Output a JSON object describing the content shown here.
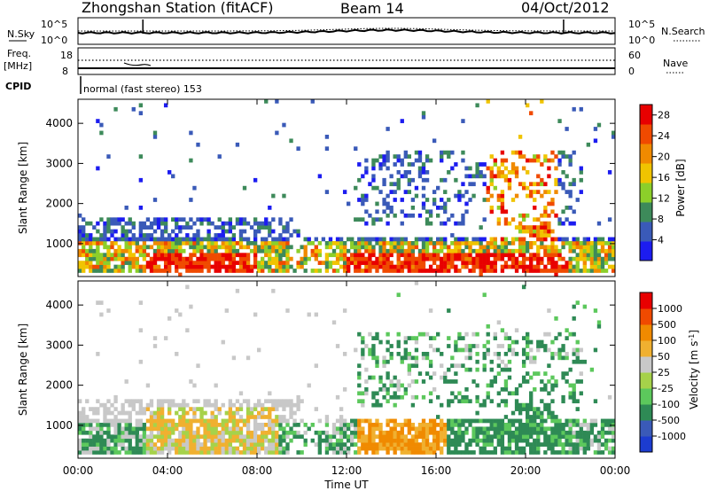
{
  "header": {
    "station": "Zhongshan Station (fitACF)",
    "beam": "Beam 14",
    "date": "04/Oct/2012"
  },
  "params": {
    "nsky_label": "N.Sky",
    "nsearch_label": "N.Search",
    "freq_label": "Freq.",
    "freq_unit": "[MHz]",
    "nave_label": "Nave",
    "cpid_label": "CPID",
    "cpid_text": "normal (fast stereo) 153",
    "noise_ticks_left": [
      "10^5",
      "10^0"
    ],
    "noise_ticks_right": [
      "10^5",
      "10^0"
    ],
    "freq_ticks": [
      "18",
      "8"
    ],
    "nave_ticks": [
      "60",
      "0"
    ]
  },
  "chart_data": [
    {
      "type": "heatmap",
      "title": "",
      "xlabel": "Time UT",
      "ylabel": "Slant Range [km]",
      "x_ticks": [
        "00:00",
        "04:00",
        "08:00",
        "12:00",
        "16:00",
        "20:00",
        "00:00"
      ],
      "xlim_hours": [
        0,
        24
      ],
      "y_ticks": [
        1000,
        2000,
        3000,
        4000
      ],
      "ylim": [
        180,
        4600
      ],
      "colorbar": {
        "label": "Power [dB]",
        "ticks": [
          4,
          8,
          12,
          16,
          20,
          24,
          28
        ],
        "range": [
          0,
          30
        ],
        "colors": [
          "#1c1cf0",
          "#3a5ab8",
          "#3d8a5a",
          "#8ccf2a",
          "#f0c400",
          "#f08a00",
          "#f04a00",
          "#e80000"
        ]
      }
    },
    {
      "type": "heatmap",
      "title": "",
      "xlabel": "Time UT",
      "ylabel": "Slant Range [km]",
      "x_ticks": [
        "00:00",
        "04:00",
        "08:00",
        "12:00",
        "16:00",
        "20:00",
        "00:00"
      ],
      "xlim_hours": [
        0,
        24
      ],
      "y_ticks": [
        1000,
        2000,
        3000,
        4000
      ],
      "ylim": [
        180,
        4600
      ],
      "colorbar": {
        "label": "Velocity [m s^-1]",
        "ticks": [
          "1000",
          "500",
          "100",
          "50",
          "25",
          "-25",
          "-100",
          "-500",
          "-1000"
        ],
        "colors": [
          "#1c3cd0",
          "#3a5ab8",
          "#2e8a55",
          "#5cc85c",
          "#a6d24a",
          "#c8c8c8",
          "#f0b030",
          "#f08a00",
          "#f04a00",
          "#e80000"
        ]
      }
    }
  ],
  "colors": {
    "axis": "#000000",
    "background": "#ffffff"
  }
}
